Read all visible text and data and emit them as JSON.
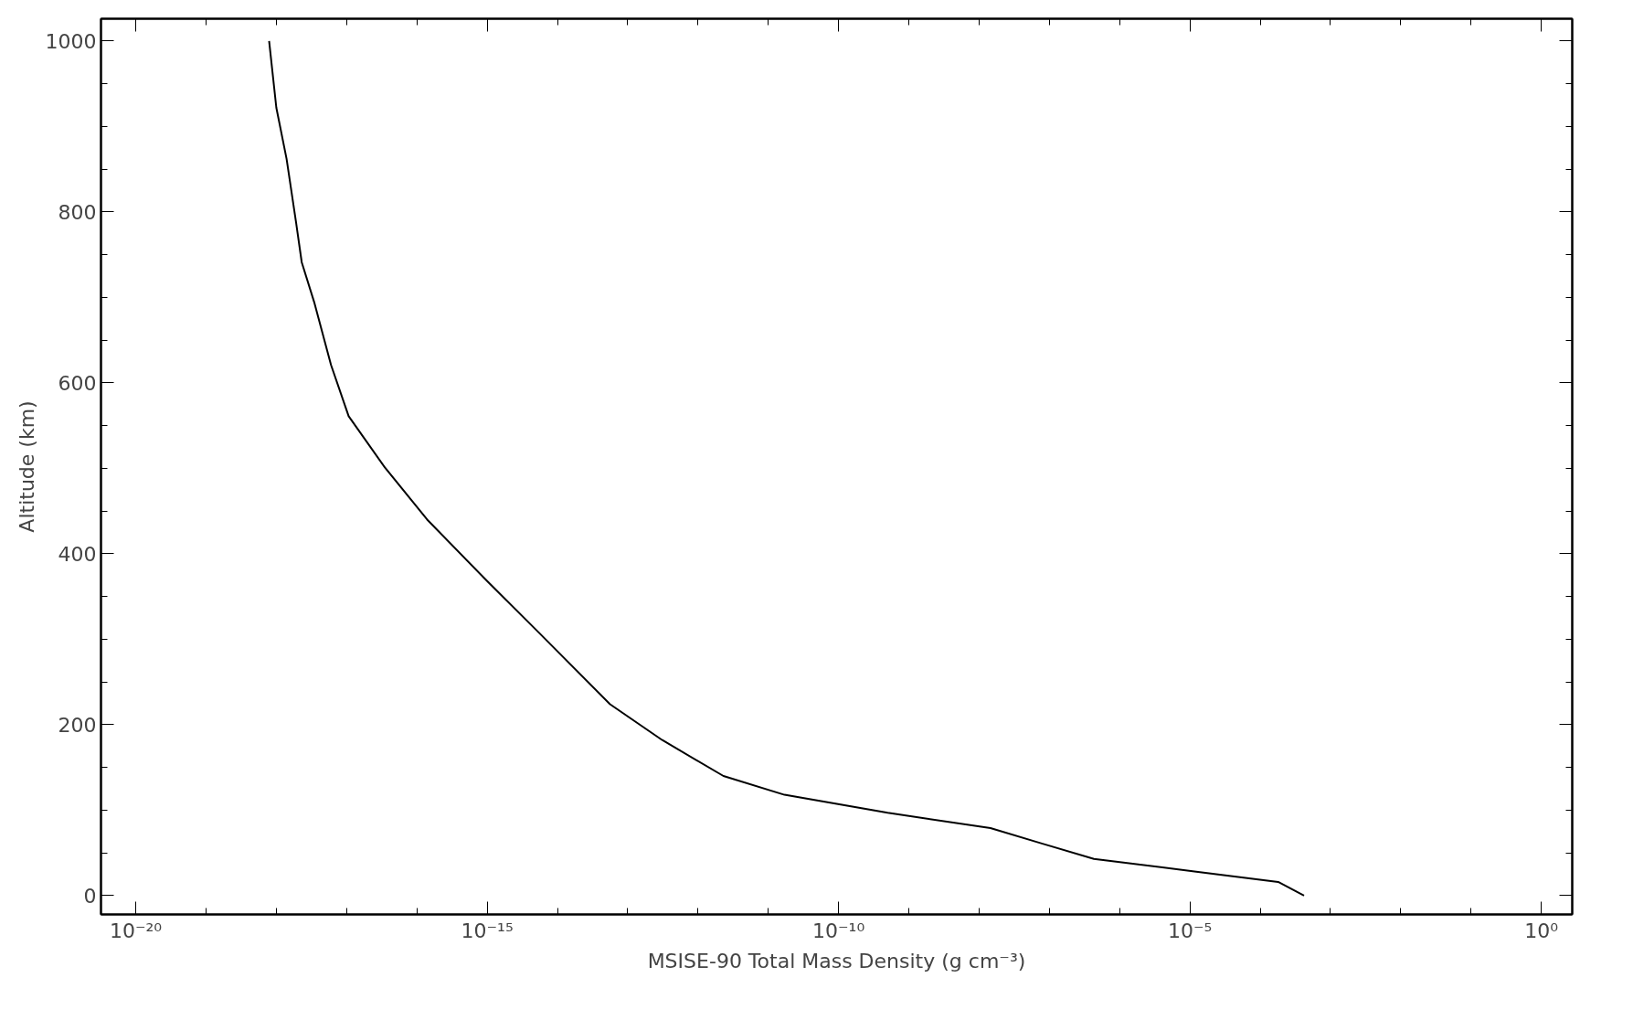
{
  "chart_data": {
    "type": "line",
    "xlabel": "MSISE-90 Total Mass Density (g cm⁻³)",
    "ylabel": "Altitude (km)",
    "log": "x",
    "grid": false,
    "marker": "none",
    "line_style": "solid",
    "xlim": [
      3.2e-21,
      2.75
    ],
    "ylim": [
      -22,
      1026
    ],
    "xticks": [
      {
        "value": 1e-20,
        "label": "10⁻²⁰"
      },
      {
        "value": 1e-15,
        "label": "10⁻¹⁵"
      },
      {
        "value": 1e-10,
        "label": "10⁻¹⁰"
      },
      {
        "value": 1e-05,
        "label": "10⁻⁵"
      },
      {
        "value": 1,
        "label": "10⁰"
      }
    ],
    "yticks": [
      0,
      200,
      400,
      600,
      800,
      1000
    ],
    "series": [
      {
        "color": "#000000",
        "x": [
          7.9e-19,
          1e-18,
          1.4e-18,
          1.9e-18,
          2.3e-18,
          3.5e-18,
          6e-18,
          1.07e-17,
          3.5e-17,
          1.4e-16,
          1e-15,
          5.4e-15,
          5.6e-14,
          3.1e-13,
          2.3e-12,
          1.7e-11,
          5e-10,
          1.45e-08,
          7.8e-08,
          4.3e-07,
          1.23e-05,
          0.00018,
          0.00042
        ],
        "values": [
          1000,
          922,
          862,
          789,
          741,
          693,
          621,
          561,
          501,
          440,
          368,
          308,
          224,
          182,
          140,
          118,
          97,
          79,
          61,
          43,
          28,
          16,
          0
        ]
      }
    ]
  }
}
